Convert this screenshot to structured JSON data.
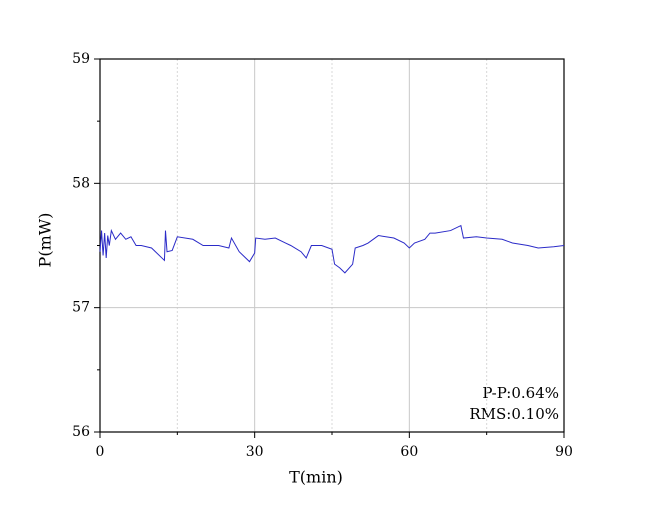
{
  "chart_data": {
    "type": "line",
    "xlabel": "T(min)",
    "ylabel": "P(mW)",
    "annotations": [
      "P-P:0.64%",
      "RMS:0.10%"
    ],
    "xlim": [
      0,
      90
    ],
    "ylim": [
      56,
      59
    ],
    "xticks": [
      0,
      30,
      60,
      90
    ],
    "xminorticks": [
      15,
      45,
      75
    ],
    "yticks": [
      56,
      57,
      58,
      59
    ],
    "yminorticks": [
      56.5,
      57.5,
      58.5
    ],
    "grid": true,
    "x": [
      0,
      0.3,
      0.6,
      0.9,
      1.2,
      1.5,
      1.8,
      2.2,
      3,
      4,
      5,
      6,
      7,
      8,
      10,
      12,
      12.5,
      12.7,
      13,
      14,
      15,
      18,
      20,
      23,
      25,
      25.5,
      27,
      29,
      30,
      30.2,
      32,
      34,
      36,
      37,
      39,
      40,
      41,
      43,
      45,
      45.5,
      46.5,
      47.5,
      49,
      49.5,
      51,
      52,
      54,
      57,
      59,
      60,
      61,
      63,
      64,
      65,
      68,
      70,
      70.5,
      73,
      75,
      78,
      80,
      83,
      85,
      88,
      90
    ],
    "series": [
      {
        "name": "P",
        "color": "#2b2bc8",
        "values": [
          57.45,
          57.62,
          57.42,
          57.6,
          57.4,
          57.58,
          57.5,
          57.62,
          57.55,
          57.6,
          57.55,
          57.57,
          57.5,
          57.5,
          57.48,
          57.4,
          57.38,
          57.62,
          57.45,
          57.46,
          57.57,
          57.55,
          57.5,
          57.5,
          57.48,
          57.56,
          57.45,
          57.37,
          57.44,
          57.56,
          57.55,
          57.56,
          57.52,
          57.5,
          57.45,
          57.4,
          57.5,
          57.5,
          57.47,
          57.35,
          57.32,
          57.28,
          57.35,
          57.48,
          57.5,
          57.52,
          57.58,
          57.56,
          57.52,
          57.48,
          57.52,
          57.55,
          57.6,
          57.6,
          57.62,
          57.66,
          57.56,
          57.57,
          57.56,
          57.55,
          57.52,
          57.5,
          57.48,
          57.49,
          57.5
        ]
      }
    ]
  }
}
